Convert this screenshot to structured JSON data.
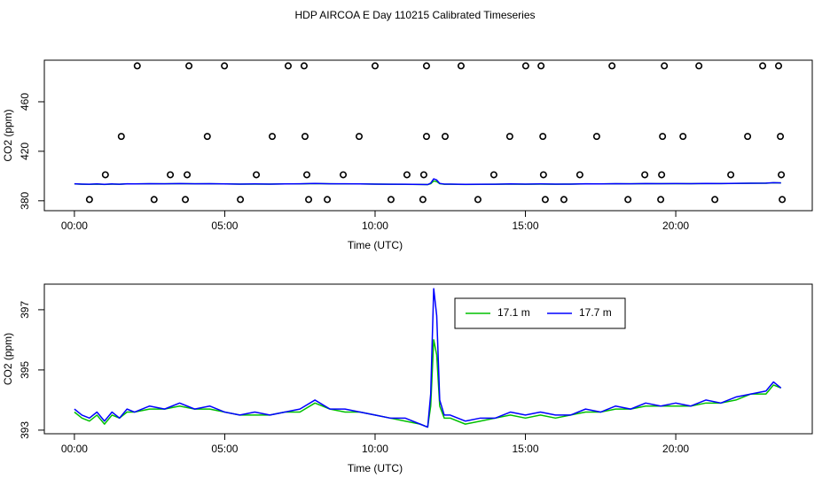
{
  "title": "HDP AIRCOA E  Day 110215  Calibrated Timeseries",
  "chart_data": [
    {
      "type": "scatter",
      "xlabel": "Time (UTC)",
      "ylabel": "CO2 (ppm)",
      "xlim": [
        -1.0,
        24.54
      ],
      "ylim": [
        372,
        493.6
      ],
      "xticks": [
        {
          "value": 0,
          "label": "00:00"
        },
        {
          "value": 5,
          "label": "05:00"
        },
        {
          "value": 10,
          "label": "10:00"
        },
        {
          "value": 15,
          "label": "15:00"
        },
        {
          "value": 20,
          "label": "20:00"
        }
      ],
      "yticks": [
        380,
        420,
        460
      ],
      "series": [
        {
          "mode": "markers",
          "color": "#000000",
          "x": [
            2.09,
            3.81,
            4.99,
            7.11,
            7.64,
            10.0,
            11.71,
            12.86,
            15.01,
            15.52,
            17.88,
            19.62,
            20.77,
            22.89,
            23.42,
            1.56,
            4.42,
            6.58,
            7.67,
            9.47,
            11.71,
            12.33,
            14.48,
            15.58,
            17.37,
            19.56,
            20.24,
            22.39,
            23.48,
            1.03,
            3.19,
            3.75,
            6.05,
            7.73,
            8.94,
            11.06,
            11.62,
            13.95,
            15.6,
            16.81,
            18.97,
            19.53,
            21.83,
            23.51,
            0.5,
            2.65,
            3.69,
            5.52,
            7.79,
            8.41,
            10.53,
            11.59,
            13.42,
            15.66,
            16.28,
            18.41,
            19.5,
            21.3,
            23.54
          ],
          "values": [
            489,
            489,
            489,
            489,
            489,
            489,
            489,
            489,
            489,
            489,
            489,
            489,
            489,
            489,
            489,
            432,
            432,
            432,
            432,
            432,
            432,
            432,
            432,
            432,
            432,
            432,
            432,
            432,
            432,
            401,
            401,
            401,
            401,
            401,
            401,
            401,
            401,
            401,
            401,
            401,
            401,
            401,
            401,
            401,
            381,
            381,
            381,
            381,
            381,
            381,
            381,
            381,
            381,
            381,
            381,
            381,
            381,
            381,
            381
          ]
        },
        {
          "mode": "line",
          "color": "#00c000",
          "x": [
            0,
            0.25,
            0.5,
            0.75,
            1,
            1.25,
            1.5,
            1.75,
            2,
            2.5,
            3,
            3.5,
            4,
            4.5,
            5,
            5.5,
            6,
            6.5,
            7,
            7.5,
            8,
            8.5,
            9,
            9.5,
            10,
            10.5,
            11,
            11.5,
            11.75,
            11.85,
            11.95,
            12.05,
            12.15,
            12.3,
            12.5,
            13,
            13.5,
            14,
            14.5,
            15,
            15.5,
            16,
            16.5,
            17,
            17.5,
            18,
            18.5,
            19,
            19.5,
            20,
            20.5,
            21,
            21.5,
            22,
            22.5,
            23,
            23.25,
            23.5
          ],
          "values": [
            393.6,
            393.4,
            393.3,
            393.5,
            393.2,
            393.5,
            393.4,
            393.6,
            393.6,
            393.7,
            393.7,
            393.8,
            393.7,
            393.7,
            393.6,
            393.5,
            393.5,
            393.5,
            393.6,
            393.6,
            393.9,
            393.7,
            393.6,
            393.6,
            393.5,
            393.4,
            393.3,
            393.2,
            393.1,
            393.8,
            396.0,
            395.5,
            393.8,
            393.4,
            393.4,
            393.2,
            393.3,
            393.4,
            393.5,
            393.4,
            393.5,
            393.4,
            393.5,
            393.6,
            393.6,
            393.7,
            393.7,
            393.8,
            393.8,
            393.8,
            393.8,
            393.9,
            393.9,
            394.0,
            394.2,
            394.2,
            394.5,
            394.4
          ]
        },
        {
          "mode": "line",
          "color": "#0000ff",
          "x": [
            0,
            0.25,
            0.5,
            0.75,
            1,
            1.25,
            1.5,
            1.75,
            2,
            2.5,
            3,
            3.5,
            4,
            4.5,
            5,
            5.5,
            6,
            6.5,
            7,
            7.5,
            8,
            8.5,
            9,
            9.5,
            10,
            10.5,
            11,
            11.5,
            11.75,
            11.85,
            11.95,
            12.05,
            12.15,
            12.3,
            12.5,
            13,
            13.5,
            14,
            14.5,
            15,
            15.5,
            16,
            16.5,
            17,
            17.5,
            18,
            18.5,
            19,
            19.5,
            20,
            20.5,
            21,
            21.5,
            22,
            22.5,
            23,
            23.25,
            23.5
          ],
          "values": [
            393.7,
            393.5,
            393.4,
            393.6,
            393.3,
            393.6,
            393.4,
            393.7,
            393.6,
            393.8,
            393.7,
            393.9,
            393.7,
            393.8,
            393.6,
            393.5,
            393.6,
            393.5,
            393.6,
            393.7,
            394.0,
            393.7,
            393.7,
            393.6,
            393.5,
            393.4,
            393.4,
            393.2,
            393.1,
            394.2,
            397.7,
            396.8,
            394.0,
            393.5,
            393.5,
            393.3,
            393.4,
            393.4,
            393.6,
            393.5,
            393.6,
            393.5,
            393.5,
            393.7,
            393.6,
            393.8,
            393.7,
            393.9,
            393.8,
            393.9,
            393.8,
            394.0,
            393.9,
            394.1,
            394.2,
            394.3,
            394.6,
            394.4
          ]
        }
      ]
    },
    {
      "type": "line",
      "xlabel": "Time (UTC)",
      "ylabel": "CO2 (ppm)",
      "xlim": [
        -1.0,
        24.54
      ],
      "ylim": [
        392.88,
        397.85
      ],
      "xticks": [
        {
          "value": 0,
          "label": "00:00"
        },
        {
          "value": 5,
          "label": "05:00"
        },
        {
          "value": 10,
          "label": "10:00"
        },
        {
          "value": 15,
          "label": "15:00"
        },
        {
          "value": 20,
          "label": "20:00"
        }
      ],
      "yticks": [
        393,
        395,
        397
      ],
      "legend": "top",
      "series": [
        {
          "name": "17.1 m",
          "color": "#00c000",
          "x": [
            0,
            0.25,
            0.5,
            0.75,
            1,
            1.25,
            1.5,
            1.75,
            2,
            2.5,
            3,
            3.5,
            4,
            4.5,
            5,
            5.5,
            6,
            6.5,
            7,
            7.5,
            8,
            8.5,
            9,
            9.5,
            10,
            10.5,
            11,
            11.5,
            11.75,
            11.85,
            11.95,
            12.05,
            12.15,
            12.3,
            12.5,
            13,
            13.5,
            14,
            14.5,
            15,
            15.5,
            16,
            16.5,
            17,
            17.5,
            18,
            18.5,
            19,
            19.5,
            20,
            20.5,
            21,
            21.5,
            22,
            22.5,
            23,
            23.25,
            23.5
          ],
          "values": [
            393.6,
            393.4,
            393.3,
            393.5,
            393.2,
            393.5,
            393.4,
            393.6,
            393.6,
            393.7,
            393.7,
            393.8,
            393.7,
            393.7,
            393.6,
            393.5,
            393.5,
            393.5,
            393.6,
            393.6,
            393.9,
            393.7,
            393.6,
            393.6,
            393.5,
            393.4,
            393.3,
            393.2,
            393.1,
            393.8,
            396.0,
            395.5,
            393.8,
            393.4,
            393.4,
            393.2,
            393.3,
            393.4,
            393.5,
            393.4,
            393.5,
            393.4,
            393.5,
            393.6,
            393.6,
            393.7,
            393.7,
            393.8,
            393.8,
            393.8,
            393.8,
            393.9,
            393.9,
            394.0,
            394.2,
            394.2,
            394.5,
            394.4
          ]
        },
        {
          "name": "17.7 m",
          "color": "#0000ff",
          "x": [
            0,
            0.25,
            0.5,
            0.75,
            1,
            1.25,
            1.5,
            1.75,
            2,
            2.5,
            3,
            3.5,
            4,
            4.5,
            5,
            5.5,
            6,
            6.5,
            7,
            7.5,
            8,
            8.5,
            9,
            9.5,
            10,
            10.5,
            11,
            11.5,
            11.75,
            11.85,
            11.95,
            12.05,
            12.15,
            12.3,
            12.5,
            13,
            13.5,
            14,
            14.5,
            15,
            15.5,
            16,
            16.5,
            17,
            17.5,
            18,
            18.5,
            19,
            19.5,
            20,
            20.5,
            21,
            21.5,
            22,
            22.5,
            23,
            23.25,
            23.5
          ],
          "values": [
            393.7,
            393.5,
            393.4,
            393.6,
            393.3,
            393.6,
            393.4,
            393.7,
            393.6,
            393.8,
            393.7,
            393.9,
            393.7,
            393.8,
            393.6,
            393.5,
            393.6,
            393.5,
            393.6,
            393.7,
            394.0,
            393.7,
            393.7,
            393.6,
            393.5,
            393.4,
            393.4,
            393.2,
            393.1,
            394.2,
            397.7,
            396.8,
            394.0,
            393.5,
            393.5,
            393.3,
            393.4,
            393.4,
            393.6,
            393.5,
            393.6,
            393.5,
            393.5,
            393.7,
            393.6,
            393.8,
            393.7,
            393.9,
            393.8,
            393.9,
            393.8,
            394.0,
            393.9,
            394.1,
            394.2,
            394.3,
            394.6,
            394.4
          ]
        }
      ]
    }
  ]
}
